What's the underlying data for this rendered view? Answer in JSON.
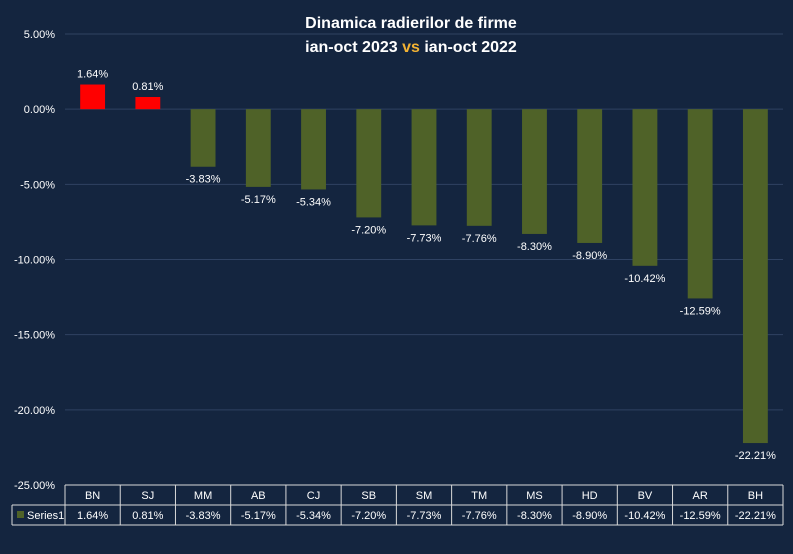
{
  "chart_data": {
    "type": "bar",
    "title": {
      "line1": "Dinamica radierilor de firme",
      "line2_a": "ian-oct 2023",
      "line2_vs": "vs",
      "line2_b": "ian-oct 2022"
    },
    "categories": [
      "BN",
      "SJ",
      "MM",
      "AB",
      "CJ",
      "SB",
      "SM",
      "TM",
      "MS",
      "HD",
      "BV",
      "AR",
      "BH"
    ],
    "series": [
      {
        "name": "Series1",
        "values": [
          1.64,
          0.81,
          -3.83,
          -5.17,
          -5.34,
          -7.2,
          -7.73,
          -7.76,
          -8.3,
          -8.9,
          -10.42,
          -12.59,
          -22.21
        ],
        "labels": [
          "1.64%",
          "0.81%",
          "-3.83%",
          "-5.17%",
          "-5.34%",
          "-7.20%",
          "-7.73%",
          "-7.76%",
          "-8.30%",
          "-8.90%",
          "-10.42%",
          "-12.59%",
          "-22.21%"
        ]
      }
    ],
    "ylim": [
      -25,
      5
    ],
    "yticks": [
      5,
      0,
      -5,
      -10,
      -15,
      -20,
      -25
    ],
    "ytick_labels": [
      "5.00%",
      "0.00%",
      "-5.00%",
      "-10.00%",
      "-15.00%",
      "-20.00%",
      "-25.00%"
    ],
    "positive_color": "#ff0000",
    "negative_color": "#4f6228",
    "data_table": true,
    "grid": true,
    "xlabel": "",
    "ylabel": ""
  }
}
